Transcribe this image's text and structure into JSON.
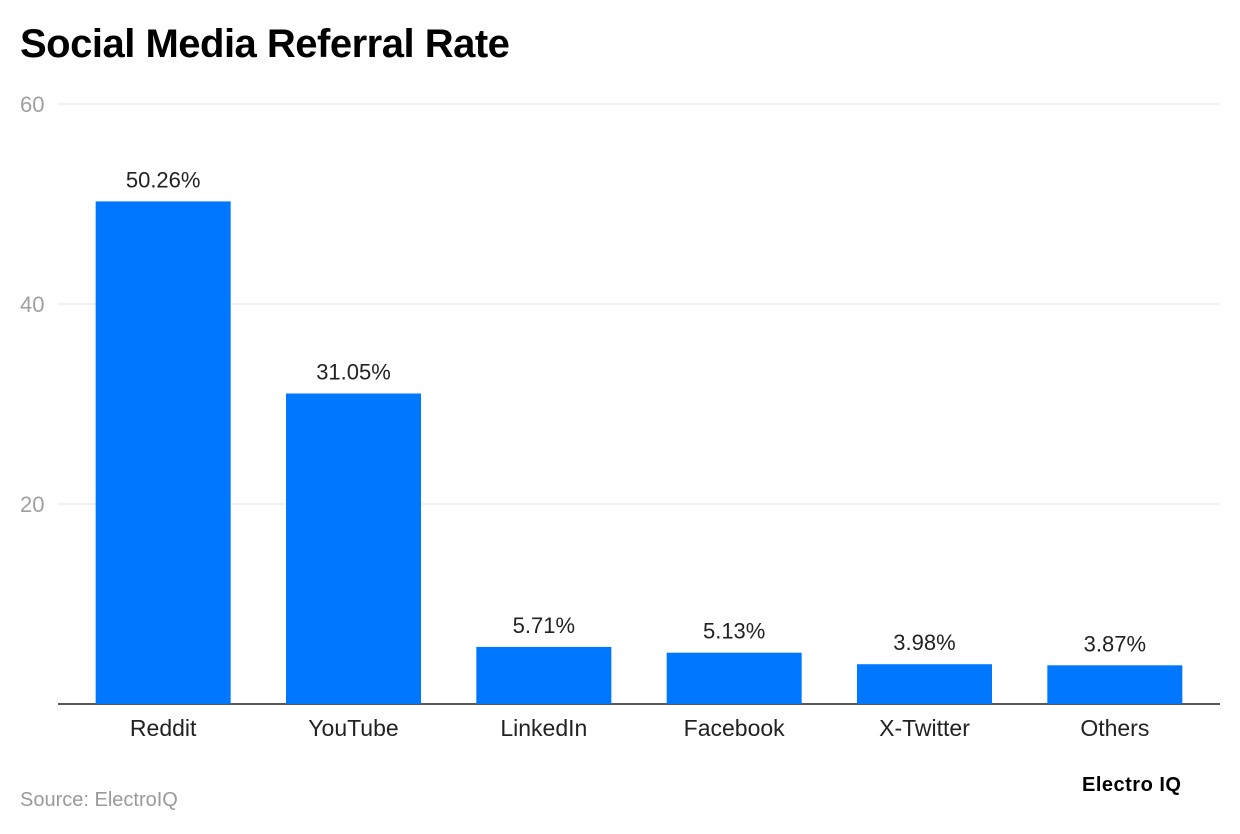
{
  "chart_data": {
    "type": "bar",
    "title": "Social Media Referral Rate",
    "xlabel": "",
    "ylabel": "",
    "categories": [
      "Reddit",
      "YouTube",
      "LinkedIn",
      "Facebook",
      "X-Twitter",
      "Others"
    ],
    "values": [
      50.26,
      31.05,
      5.71,
      5.13,
      3.98,
      3.87
    ],
    "data_labels": [
      "50.26%",
      "31.05%",
      "5.71%",
      "5.13%",
      "3.98%",
      "3.87%"
    ],
    "yticks": [
      20,
      40,
      60
    ],
    "ylim": [
      0,
      60
    ],
    "grid": true,
    "legend": "none",
    "bar_color": "#0077ff"
  },
  "footer": {
    "source": "Source: ElectroIQ",
    "brand": "Electro IQ"
  }
}
